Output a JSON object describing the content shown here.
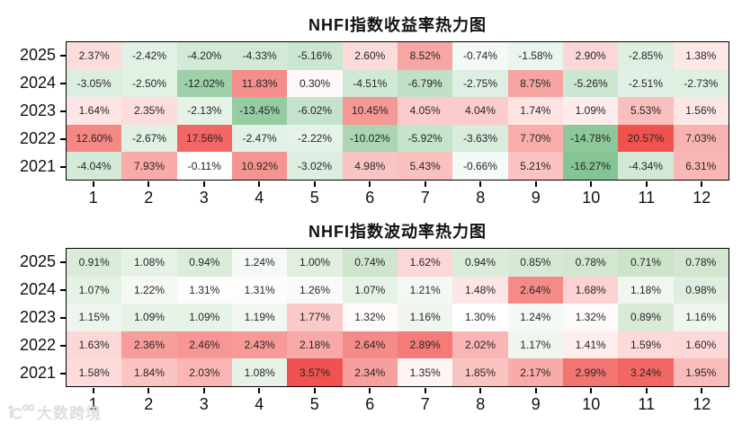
{
  "watermark": {
    "text": "大数跨境"
  },
  "chart_data": [
    {
      "type": "heatmap",
      "title": "NHFI指数收益率热力图",
      "xlabel": "",
      "ylabel": "",
      "x_ticks": [
        "1",
        "2",
        "3",
        "4",
        "5",
        "6",
        "7",
        "8",
        "9",
        "10",
        "11",
        "12"
      ],
      "y_ticks": [
        "2025",
        "2024",
        "2023",
        "2022",
        "2021"
      ],
      "unit": "%",
      "decimals": 2,
      "grid": false,
      "legend": "none",
      "rows": [
        [
          2.37,
          -2.42,
          -4.2,
          -4.33,
          -5.16,
          2.6,
          8.52,
          -0.74,
          -1.58,
          2.9,
          -2.85,
          1.38
        ],
        [
          -3.05,
          -2.5,
          -12.02,
          11.83,
          0.3,
          -4.51,
          -6.79,
          -2.75,
          8.75,
          -5.26,
          -2.51,
          -2.73
        ],
        [
          1.64,
          2.35,
          -2.13,
          -13.45,
          -6.02,
          10.45,
          4.05,
          4.04,
          1.74,
          1.09,
          5.53,
          1.56
        ],
        [
          12.6,
          -2.67,
          17.56,
          -2.47,
          -2.22,
          -10.02,
          -5.92,
          -3.63,
          7.7,
          -14.78,
          20.57,
          7.03
        ],
        [
          -4.04,
          7.93,
          -0.11,
          10.92,
          -3.02,
          4.98,
          5.43,
          -0.66,
          5.21,
          -16.27,
          -4.34,
          6.31
        ]
      ],
      "colormap": {
        "positive_color": "#f0534f",
        "negative_color": "#85c493",
        "neutral_color": "#ffffff",
        "center": 0,
        "vmin": -16.27,
        "vmax": 20.57,
        "gamma": 0.75
      }
    },
    {
      "type": "heatmap",
      "title": "NHFI指数波动率热力图",
      "xlabel": "",
      "ylabel": "",
      "x_ticks": [
        "1",
        "2",
        "3",
        "4",
        "5",
        "6",
        "7",
        "8",
        "9",
        "10",
        "11",
        "12"
      ],
      "y_ticks": [
        "2025",
        "2024",
        "2023",
        "2022",
        "2021"
      ],
      "unit": "%",
      "decimals": 2,
      "grid": false,
      "legend": "none",
      "rows": [
        [
          0.91,
          1.08,
          0.94,
          1.24,
          1.0,
          0.74,
          1.62,
          0.94,
          0.85,
          0.78,
          0.71,
          0.78
        ],
        [
          1.07,
          1.22,
          1.31,
          1.31,
          1.26,
          1.07,
          1.21,
          1.48,
          2.64,
          1.68,
          1.18,
          0.98
        ],
        [
          1.15,
          1.09,
          1.09,
          1.19,
          1.77,
          1.32,
          1.16,
          1.3,
          1.24,
          1.32,
          0.89,
          1.16
        ],
        [
          1.63,
          2.36,
          2.46,
          2.43,
          2.18,
          2.64,
          2.89,
          2.02,
          1.17,
          1.41,
          1.59,
          1.6
        ],
        [
          1.58,
          1.84,
          2.03,
          1.08,
          3.57,
          2.34,
          1.35,
          1.85,
          2.17,
          2.99,
          3.24,
          1.95
        ]
      ],
      "colormap": {
        "positive_color": "#f0534f",
        "negative_color": "#cde4cb",
        "neutral_color": "#ffffff",
        "center": 1.3,
        "vmin": 0.71,
        "vmax": 3.57,
        "gamma": 0.75
      }
    }
  ]
}
